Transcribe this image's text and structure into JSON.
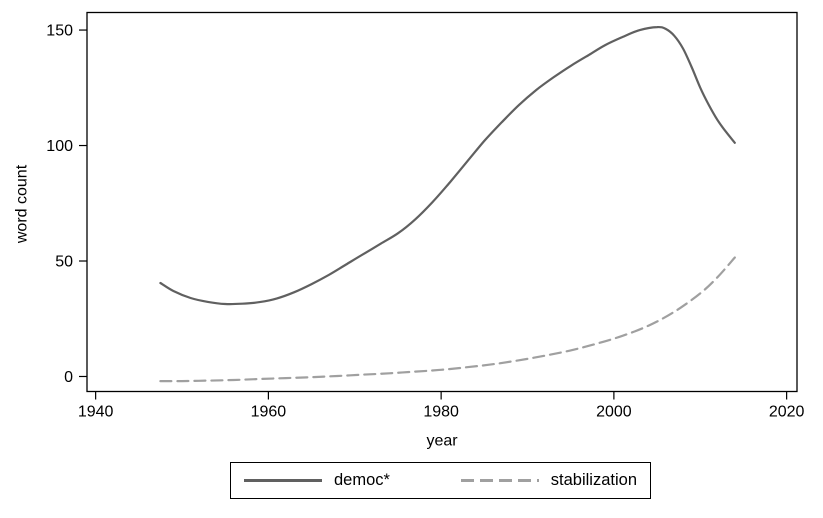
{
  "figure": {
    "background": "#ffffff",
    "axis_color": "#000000",
    "tick_font_px": 16
  },
  "legend": {
    "position": "bottom-center",
    "border_color": "#000000"
  },
  "chart_data": {
    "type": "line",
    "title": "",
    "xlabel": "year",
    "ylabel": "word count",
    "xlim": [
      1939,
      2021.2
    ],
    "ylim": [
      -6.5,
      157.6
    ],
    "x_ticks": [
      1940,
      1960,
      1980,
      2000,
      2020
    ],
    "y_ticks": [
      0,
      50,
      100,
      150
    ],
    "grid": false,
    "legend_position": "bottom",
    "series": [
      {
        "name": "democ*",
        "color": "#606060",
        "style": "solid",
        "width": 2.2,
        "points": [
          [
            1947.5,
            40.5
          ],
          [
            1949,
            37
          ],
          [
            1951,
            34
          ],
          [
            1953,
            32.3
          ],
          [
            1955,
            31.4
          ],
          [
            1957,
            31.5
          ],
          [
            1959,
            32.2
          ],
          [
            1961,
            33.8
          ],
          [
            1963,
            36.5
          ],
          [
            1965,
            40
          ],
          [
            1967,
            44
          ],
          [
            1969,
            48.5
          ],
          [
            1971,
            53
          ],
          [
            1973,
            57.5
          ],
          [
            1975,
            62
          ],
          [
            1977,
            68
          ],
          [
            1979,
            75.5
          ],
          [
            1981,
            84
          ],
          [
            1983,
            93
          ],
          [
            1985,
            102
          ],
          [
            1987,
            110
          ],
          [
            1989,
            117.5
          ],
          [
            1991,
            124
          ],
          [
            1993,
            129.5
          ],
          [
            1995,
            134.5
          ],
          [
            1997,
            139
          ],
          [
            1999,
            143.5
          ],
          [
            2001,
            147
          ],
          [
            2003,
            150
          ],
          [
            2005,
            151.3
          ],
          [
            2006,
            150.5
          ],
          [
            2007,
            147.5
          ],
          [
            2008,
            142
          ],
          [
            2009,
            134
          ],
          [
            2010,
            125
          ],
          [
            2011,
            117.5
          ],
          [
            2012,
            111
          ],
          [
            2013,
            105.8
          ],
          [
            2014,
            101.2
          ]
        ]
      },
      {
        "name": "stabilization",
        "color": "#a0a0a0",
        "style": "dashed",
        "width": 2.2,
        "points": [
          [
            1947.5,
            -2
          ],
          [
            1950,
            -2
          ],
          [
            1953,
            -1.8
          ],
          [
            1956,
            -1.5
          ],
          [
            1959,
            -1.1
          ],
          [
            1962,
            -0.7
          ],
          [
            1965,
            -0.3
          ],
          [
            1968,
            0.2
          ],
          [
            1971,
            0.8
          ],
          [
            1974,
            1.4
          ],
          [
            1977,
            2.1
          ],
          [
            1980,
            2.9
          ],
          [
            1983,
            4
          ],
          [
            1986,
            5.3
          ],
          [
            1989,
            7
          ],
          [
            1992,
            9
          ],
          [
            1995,
            11.3
          ],
          [
            1998,
            14.2
          ],
          [
            2001,
            17.6
          ],
          [
            2004,
            22
          ],
          [
            2007,
            28
          ],
          [
            2010,
            36
          ],
          [
            2012,
            43
          ],
          [
            2014,
            51.5
          ]
        ]
      }
    ]
  }
}
